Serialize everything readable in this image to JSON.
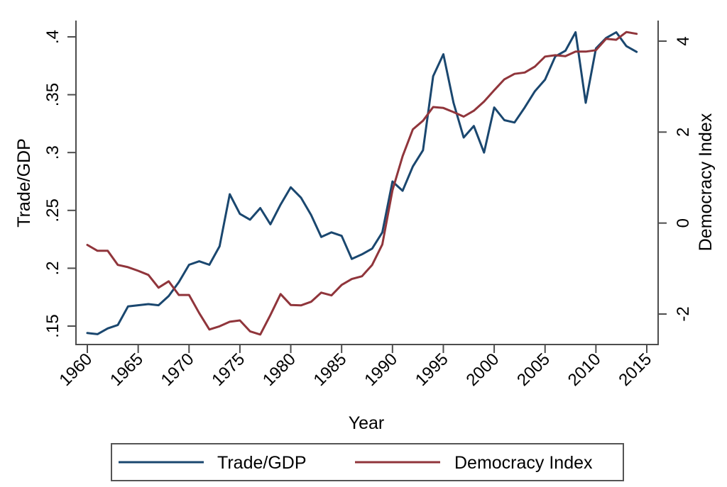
{
  "chart_data": {
    "type": "line",
    "title": "",
    "xlabel": "Year",
    "ylabel": "Trade/GDP",
    "y2label": "Democracy Index",
    "xlim": [
      1960,
      2015
    ],
    "ylim": [
      0.15,
      0.4
    ],
    "y2lim": [
      -2,
      4
    ],
    "grid": false,
    "legend_position": "bottom",
    "x_ticks": [
      1960,
      1965,
      1970,
      1975,
      1980,
      1985,
      1990,
      1995,
      2000,
      2005,
      2010,
      2015
    ],
    "x_tick_labels": [
      "1960",
      "1965",
      "1970",
      "1975",
      "1980",
      "1985",
      "1990",
      "1995",
      "2000",
      "2005",
      "2010",
      "2015"
    ],
    "y_ticks": [
      0.15,
      0.2,
      0.25,
      0.3,
      0.35,
      0.4
    ],
    "y_tick_labels": [
      ".15",
      ".2",
      ".25",
      ".3",
      ".35",
      ".4"
    ],
    "y2_ticks": [
      -2,
      0,
      2,
      4
    ],
    "y2_tick_labels": [
      "-2",
      "0",
      "2",
      "4"
    ],
    "x": [
      1960,
      1961,
      1962,
      1963,
      1964,
      1965,
      1966,
      1967,
      1968,
      1969,
      1970,
      1971,
      1972,
      1973,
      1974,
      1975,
      1976,
      1977,
      1978,
      1979,
      1980,
      1981,
      1982,
      1983,
      1984,
      1985,
      1986,
      1987,
      1988,
      1989,
      1990,
      1991,
      1992,
      1993,
      1994,
      1995,
      1996,
      1997,
      1998,
      1999,
      2000,
      2001,
      2002,
      2003,
      2004,
      2005,
      2006,
      2007,
      2008,
      2009,
      2010,
      2011,
      2012,
      2013,
      2014
    ],
    "series": [
      {
        "name": "Trade/GDP",
        "axis": "left",
        "color": "#1a476f",
        "values": [
          0.144,
          0.143,
          0.148,
          0.151,
          0.167,
          0.168,
          0.169,
          0.168,
          0.176,
          0.188,
          0.203,
          0.206,
          0.203,
          0.219,
          0.264,
          0.247,
          0.242,
          0.252,
          0.238,
          0.255,
          0.27,
          0.261,
          0.246,
          0.227,
          0.231,
          0.228,
          0.208,
          0.212,
          0.217,
          0.231,
          0.275,
          0.267,
          0.288,
          0.302,
          0.366,
          0.385,
          0.343,
          0.313,
          0.323,
          0.3,
          0.339,
          0.328,
          0.326,
          0.339,
          0.353,
          0.363,
          0.383,
          0.388,
          0.404,
          0.343,
          0.39,
          0.399,
          0.404,
          0.392,
          0.387
        ]
      },
      {
        "name": "Democracy Index",
        "axis": "right",
        "color": "#90353b",
        "values": [
          -0.48,
          -0.61,
          -0.61,
          -0.92,
          -0.97,
          -1.05,
          -1.14,
          -1.42,
          -1.28,
          -1.58,
          -1.58,
          -1.98,
          -2.34,
          -2.27,
          -2.17,
          -2.14,
          -2.38,
          -2.45,
          -2.02,
          -1.56,
          -1.8,
          -1.81,
          -1.73,
          -1.53,
          -1.59,
          -1.36,
          -1.23,
          -1.17,
          -0.92,
          -0.47,
          0.72,
          1.47,
          2.06,
          2.25,
          2.55,
          2.53,
          2.44,
          2.34,
          2.47,
          2.67,
          2.92,
          3.16,
          3.28,
          3.31,
          3.44,
          3.66,
          3.69,
          3.67,
          3.77,
          3.77,
          3.8,
          4.05,
          4.03,
          4.2,
          4.16
        ]
      }
    ],
    "legend": [
      {
        "label": "Trade/GDP",
        "color": "#1a476f"
      },
      {
        "label": "Democracy Index",
        "color": "#90353b"
      }
    ]
  }
}
